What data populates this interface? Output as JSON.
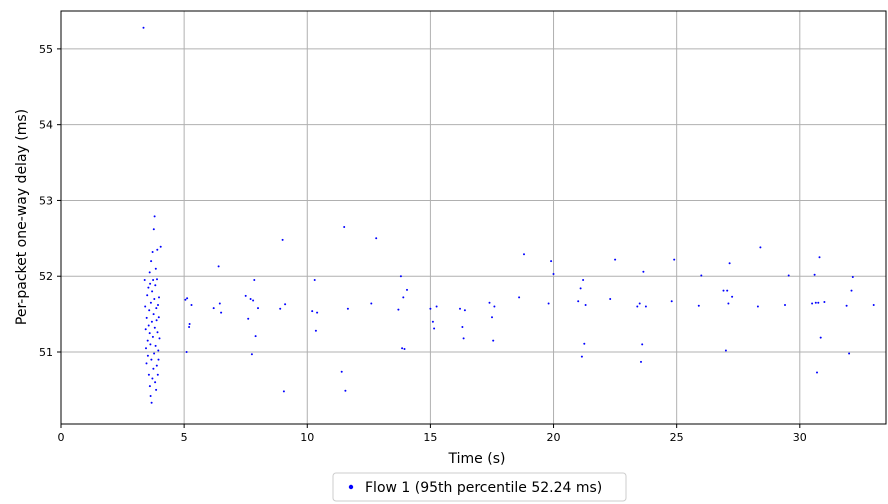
{
  "chart_data": {
    "type": "scatter",
    "title": "",
    "xlabel": "Time (s)",
    "ylabel": "Per-packet one-way delay (ms)",
    "xlim": [
      0,
      33.5
    ],
    "ylim": [
      50.05,
      55.5
    ],
    "xticks": [
      0,
      5,
      10,
      15,
      20,
      25,
      30
    ],
    "yticks": [
      51,
      52,
      53,
      54,
      55
    ],
    "xtick_labels": [
      "0",
      "5",
      "10",
      "15",
      "20",
      "25",
      "30"
    ],
    "ytick_labels": [
      "51",
      "52",
      "53",
      "54",
      "55"
    ],
    "grid": true,
    "legend": "bottom-center",
    "colors": {
      "series": "#0000ff",
      "grid": "#b0b0b0",
      "axis": "#000000"
    },
    "series": [
      {
        "name": "Flow 1 (95th percentile 52.24 ms)",
        "marker": "dot",
        "points": [
          [
            3.35,
            55.28
          ],
          [
            3.4,
            51.95
          ],
          [
            3.42,
            51.6
          ],
          [
            3.44,
            51.3
          ],
          [
            3.45,
            51.05
          ],
          [
            3.47,
            50.85
          ],
          [
            3.48,
            51.45
          ],
          [
            3.5,
            51.75
          ],
          [
            3.52,
            51.15
          ],
          [
            3.53,
            50.95
          ],
          [
            3.55,
            51.85
          ],
          [
            3.56,
            51.35
          ],
          [
            3.57,
            50.7
          ],
          [
            3.58,
            51.55
          ],
          [
            3.6,
            52.05
          ],
          [
            3.6,
            51.25
          ],
          [
            3.61,
            50.55
          ],
          [
            3.62,
            51.9
          ],
          [
            3.63,
            51.1
          ],
          [
            3.64,
            50.42
          ],
          [
            3.65,
            51.65
          ],
          [
            3.66,
            52.2
          ],
          [
            3.67,
            50.9
          ],
          [
            3.68,
            50.33
          ],
          [
            3.69,
            51.4
          ],
          [
            3.7,
            51.8
          ],
          [
            3.71,
            50.65
          ],
          [
            3.72,
            52.32
          ],
          [
            3.73,
            51.2
          ],
          [
            3.74,
            51.95
          ],
          [
            3.75,
            50.78
          ],
          [
            3.76,
            51.5
          ],
          [
            3.77,
            52.62
          ],
          [
            3.78,
            50.98
          ],
          [
            3.79,
            51.7
          ],
          [
            3.8,
            52.79
          ],
          [
            3.81,
            51.32
          ],
          [
            3.82,
            50.6
          ],
          [
            3.83,
            51.88
          ],
          [
            3.84,
            51.08
          ],
          [
            3.85,
            52.1
          ],
          [
            3.86,
            50.5
          ],
          [
            3.87,
            51.58
          ],
          [
            3.88,
            51.42
          ],
          [
            3.89,
            50.82
          ],
          [
            3.9,
            51.96
          ],
          [
            3.91,
            52.35
          ],
          [
            3.92,
            51.26
          ],
          [
            3.93,
            50.7
          ],
          [
            3.94,
            51.62
          ],
          [
            3.95,
            51.02
          ],
          [
            3.96,
            50.9
          ],
          [
            3.97,
            51.46
          ],
          [
            3.98,
            51.72
          ],
          [
            4.0,
            51.18
          ],
          [
            4.05,
            52.39
          ],
          [
            5.05,
            51.69
          ],
          [
            5.1,
            51.0
          ],
          [
            5.12,
            51.71
          ],
          [
            5.2,
            51.33
          ],
          [
            5.22,
            51.37
          ],
          [
            5.3,
            51.62
          ],
          [
            6.2,
            51.58
          ],
          [
            6.4,
            52.13
          ],
          [
            6.45,
            51.64
          ],
          [
            6.5,
            51.52
          ],
          [
            7.5,
            51.74
          ],
          [
            7.6,
            51.44
          ],
          [
            7.7,
            51.7
          ],
          [
            7.75,
            50.97
          ],
          [
            7.8,
            51.68
          ],
          [
            7.85,
            51.95
          ],
          [
            7.9,
            51.21
          ],
          [
            8.0,
            51.58
          ],
          [
            8.9,
            51.57
          ],
          [
            9.0,
            52.48
          ],
          [
            9.05,
            50.48
          ],
          [
            9.1,
            51.63
          ],
          [
            10.2,
            51.54
          ],
          [
            10.3,
            51.95
          ],
          [
            10.35,
            51.28
          ],
          [
            10.4,
            51.52
          ],
          [
            11.4,
            50.74
          ],
          [
            11.5,
            52.65
          ],
          [
            11.55,
            50.49
          ],
          [
            11.65,
            51.57
          ],
          [
            12.6,
            51.64
          ],
          [
            12.8,
            52.5
          ],
          [
            13.7,
            51.56
          ],
          [
            13.8,
            52.0
          ],
          [
            13.85,
            51.05
          ],
          [
            13.9,
            51.72
          ],
          [
            13.95,
            51.04
          ],
          [
            14.05,
            51.82
          ],
          [
            15.0,
            51.57
          ],
          [
            15.1,
            51.4
          ],
          [
            15.15,
            51.31
          ],
          [
            15.25,
            51.6
          ],
          [
            16.2,
            51.57
          ],
          [
            16.3,
            51.33
          ],
          [
            16.35,
            51.18
          ],
          [
            16.4,
            51.55
          ],
          [
            17.4,
            51.65
          ],
          [
            17.5,
            51.46
          ],
          [
            17.55,
            51.15
          ],
          [
            17.6,
            51.6
          ],
          [
            18.6,
            51.72
          ],
          [
            18.8,
            52.29
          ],
          [
            19.8,
            51.64
          ],
          [
            19.9,
            52.2
          ],
          [
            20.0,
            52.03
          ],
          [
            21.0,
            51.67
          ],
          [
            21.1,
            51.84
          ],
          [
            21.15,
            50.94
          ],
          [
            21.2,
            51.95
          ],
          [
            21.25,
            51.11
          ],
          [
            21.3,
            51.62
          ],
          [
            22.3,
            51.7
          ],
          [
            22.5,
            52.22
          ],
          [
            23.4,
            51.6
          ],
          [
            23.5,
            51.64
          ],
          [
            23.55,
            50.87
          ],
          [
            23.6,
            51.1
          ],
          [
            23.65,
            52.06
          ],
          [
            23.75,
            51.6
          ],
          [
            24.8,
            51.67
          ],
          [
            24.9,
            52.22
          ],
          [
            25.9,
            51.61
          ],
          [
            26.0,
            52.01
          ],
          [
            26.9,
            51.81
          ],
          [
            27.0,
            51.02
          ],
          [
            27.05,
            51.81
          ],
          [
            27.1,
            51.64
          ],
          [
            27.15,
            52.17
          ],
          [
            27.25,
            51.73
          ],
          [
            28.3,
            51.6
          ],
          [
            28.4,
            52.38
          ],
          [
            29.4,
            51.62
          ],
          [
            29.55,
            52.01
          ],
          [
            30.5,
            51.64
          ],
          [
            30.6,
            52.02
          ],
          [
            30.65,
            51.65
          ],
          [
            30.7,
            50.73
          ],
          [
            30.75,
            51.65
          ],
          [
            30.8,
            52.25
          ],
          [
            30.85,
            51.19
          ],
          [
            31.0,
            51.66
          ],
          [
            31.9,
            51.61
          ],
          [
            32.0,
            50.98
          ],
          [
            32.1,
            51.81
          ],
          [
            32.15,
            51.99
          ],
          [
            33.0,
            51.62
          ]
        ]
      }
    ]
  }
}
